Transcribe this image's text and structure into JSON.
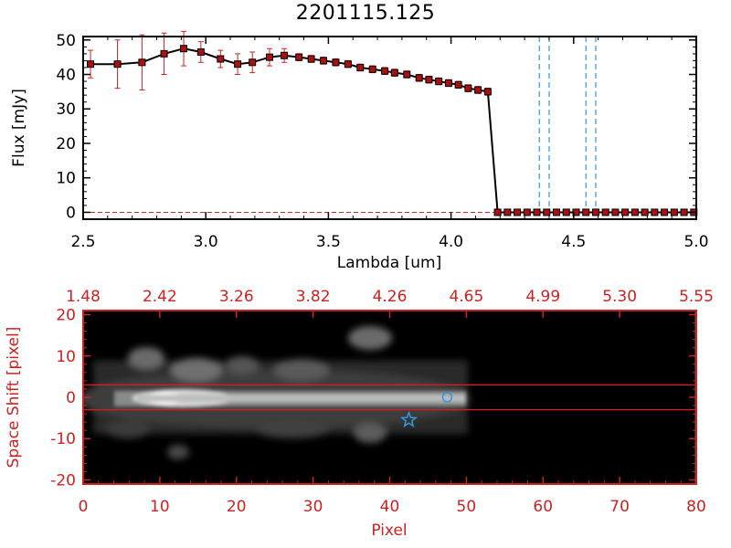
{
  "title": "2201115.125",
  "chart_data": [
    {
      "type": "line",
      "xlabel": "Lambda [um]",
      "ylabel": "Flux [mJy]",
      "xlim": [
        2.5,
        5.0
      ],
      "ylim": [
        -2,
        51
      ],
      "xticks": [
        "2.5",
        "3.0",
        "3.5",
        "4.0",
        "4.5",
        "5.0"
      ],
      "yticks": [
        "0",
        "10",
        "20",
        "30",
        "40",
        "50"
      ],
      "series": [
        {
          "x": [
            2.53,
            2.64,
            2.74,
            2.83,
            2.91,
            2.98,
            3.06,
            3.13,
            3.19,
            3.26,
            3.32,
            3.38,
            3.43,
            3.48,
            3.53,
            3.58,
            3.63,
            3.68,
            3.73,
            3.77,
            3.82,
            3.87,
            3.91,
            3.95,
            3.99,
            4.03,
            4.07,
            4.11,
            4.15,
            4.19,
            4.23,
            4.27,
            4.31,
            4.35,
            4.39,
            4.43,
            4.47,
            4.51,
            4.55,
            4.59,
            4.63,
            4.67,
            4.71,
            4.75,
            4.79,
            4.83,
            4.87,
            4.91,
            4.95,
            4.99
          ],
          "y": [
            43,
            43,
            43.5,
            46,
            47.5,
            46.5,
            44.5,
            43,
            43.5,
            45,
            45.5,
            45,
            44.5,
            44,
            43.5,
            43,
            42,
            41.5,
            41,
            40.5,
            40,
            39,
            38.5,
            38,
            37.5,
            37,
            36,
            35.5,
            35,
            0,
            0,
            0,
            0,
            0,
            0,
            0,
            0,
            0,
            0,
            0,
            0,
            0,
            0,
            0,
            0,
            0,
            0,
            0,
            0,
            0
          ],
          "yerr": [
            4,
            7,
            8,
            6,
            5,
            3,
            2.5,
            3,
            3,
            2.5,
            2,
            1,
            1,
            1,
            1,
            1,
            1,
            1,
            1,
            1,
            1,
            1,
            1,
            1,
            1,
            1,
            1,
            1,
            1,
            0,
            0,
            0,
            0,
            0,
            0,
            0,
            0,
            0,
            0,
            0,
            0,
            0,
            0,
            0,
            0,
            0,
            0,
            0,
            0,
            0
          ],
          "color": "#000000",
          "marker_color": "#aa1111",
          "errorbar_color": "#cc2222"
        }
      ],
      "vlines": [
        4.36,
        4.4,
        4.55,
        4.59
      ],
      "vline_color": "#3399dd",
      "hline_y": 0,
      "hline_color": "#cc2222"
    },
    {
      "type": "heatmap",
      "xlabel": "Pixel",
      "ylabel": "Space Shift [pixel]",
      "xlim": [
        0,
        80
      ],
      "ylim": [
        -21,
        21
      ],
      "xticks": [
        "0",
        "10",
        "20",
        "30",
        "40",
        "50",
        "60",
        "70",
        "80"
      ],
      "yticks": [
        "-20",
        "-10",
        "0",
        "10",
        "20"
      ],
      "top_xticks": [
        "1.48",
        "2.42",
        "3.26",
        "3.82",
        "4.26",
        "4.65",
        "4.99",
        "5.30",
        "5.55"
      ],
      "hlines": [
        3,
        -3
      ],
      "hline_color": "#cc2222",
      "markers": [
        {
          "shape": "star",
          "x": 42.5,
          "y": -5.5,
          "color": "#3399dd"
        },
        {
          "shape": "circle",
          "x": 47.5,
          "y": 0,
          "color": "#3399dd"
        }
      ],
      "axis_color": "#cc2222"
    }
  ]
}
